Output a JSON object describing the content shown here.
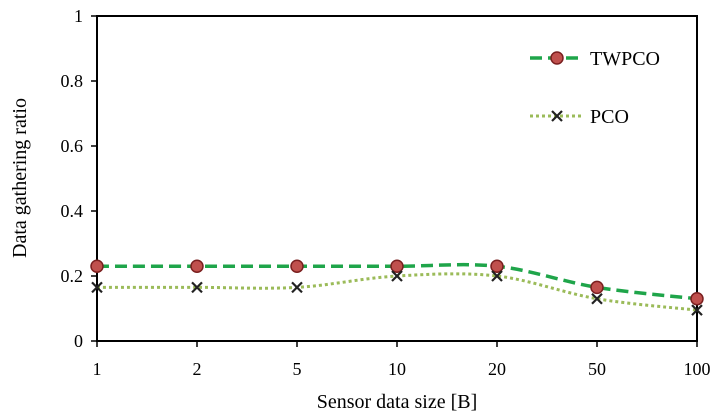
{
  "chart_data": {
    "type": "line",
    "title": "",
    "xlabel": "Sensor data size [B]",
    "ylabel": "Data gathering ratio",
    "categories": [
      "1",
      "2",
      "5",
      "10",
      "20",
      "50",
      "100"
    ],
    "ylim": [
      0,
      1
    ],
    "yticks": [
      "0",
      "0.2",
      "0.4",
      "0.6",
      "0.8",
      "1"
    ],
    "grid": false,
    "legend_position": "top-right",
    "series": [
      {
        "name": "TWPCO",
        "values": [
          0.23,
          0.23,
          0.23,
          0.23,
          0.23,
          0.165,
          0.13
        ],
        "line_color": "#1fa54a",
        "line_style": "dashed",
        "marker": "circle",
        "marker_fill": "#c0504d",
        "marker_stroke": "#7a1f1f"
      },
      {
        "name": "PCO",
        "values": [
          0.165,
          0.165,
          0.165,
          0.2,
          0.2,
          0.13,
          0.095
        ],
        "line_color": "#9bbb59",
        "line_style": "dotted",
        "marker": "x",
        "marker_stroke": "#222222"
      }
    ]
  }
}
